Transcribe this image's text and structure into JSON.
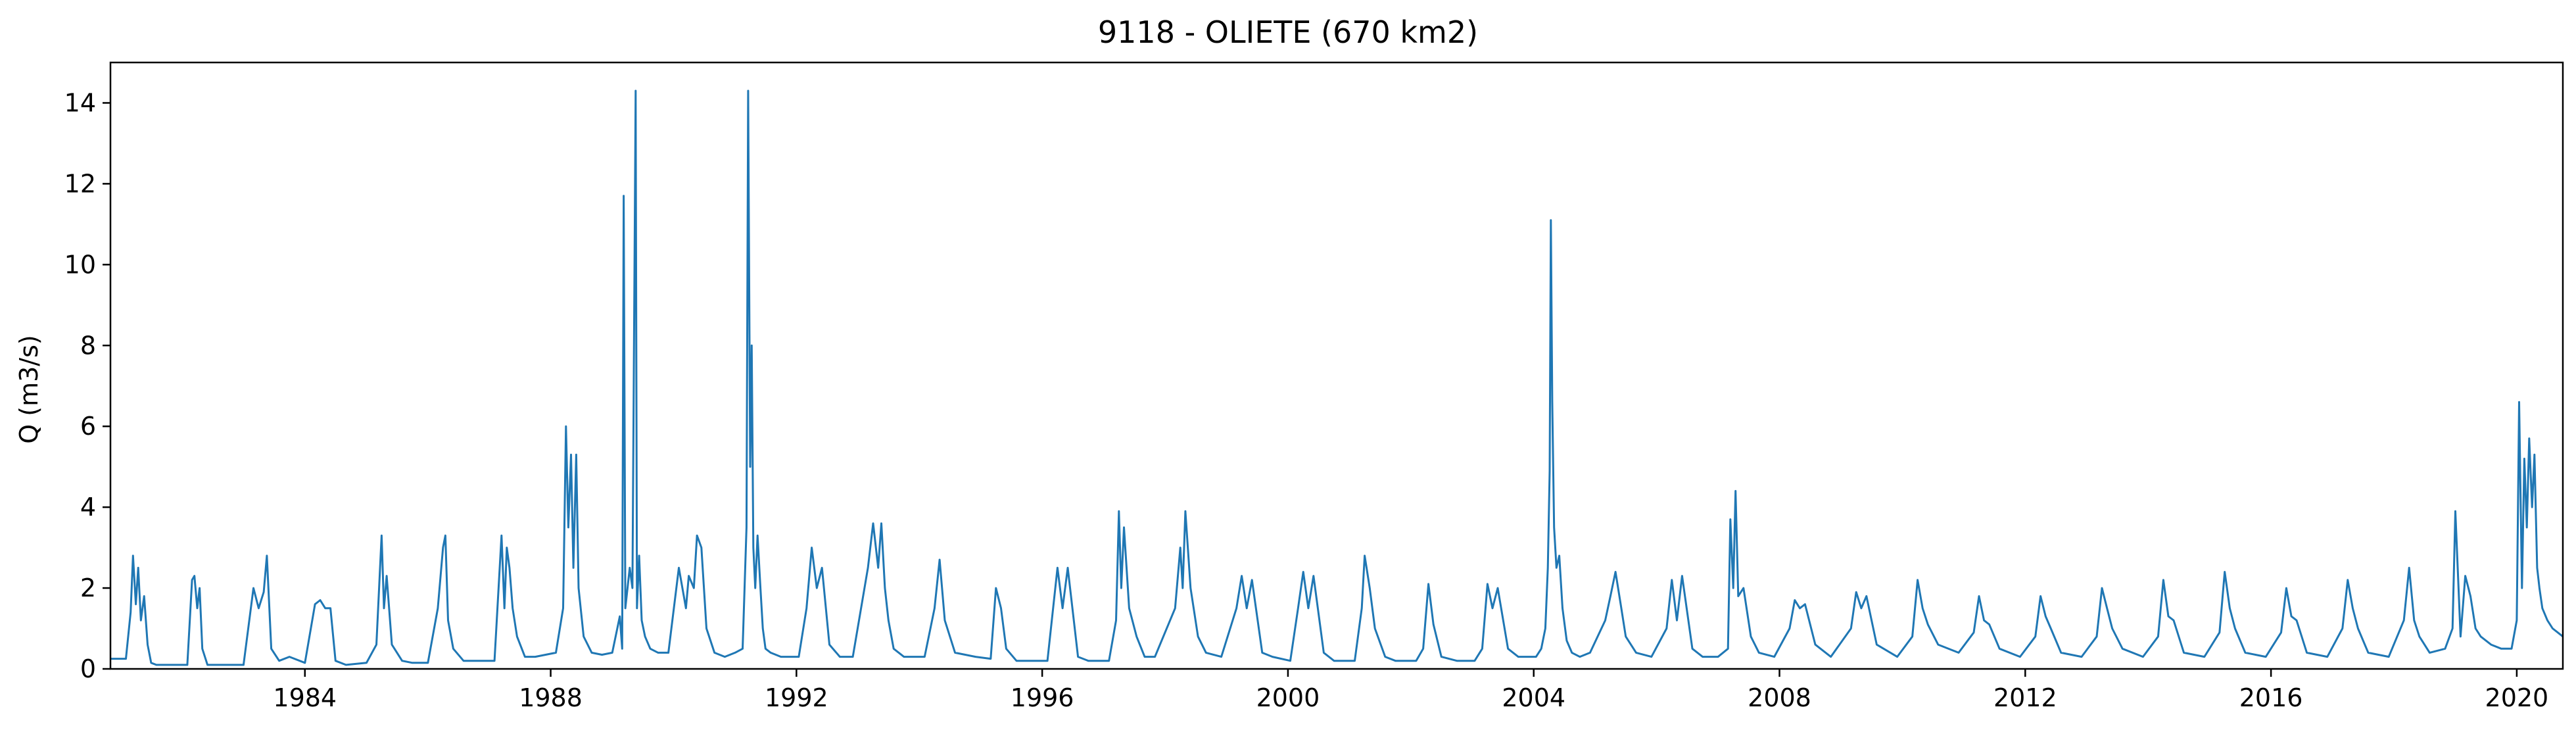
{
  "chart_data": {
    "type": "line",
    "title": "9118 - OLIETE (670 km2)",
    "xlabel": "",
    "ylabel": "Q (m3/s)",
    "xlim": [
      "1980-11-01",
      "2020-10-01"
    ],
    "ylim": [
      0,
      15
    ],
    "xticks": [
      "1984",
      "1988",
      "1992",
      "1996",
      "2000",
      "2004",
      "2008",
      "2012",
      "2016",
      "2020"
    ],
    "yticks": [
      0,
      2,
      4,
      6,
      8,
      10,
      12,
      14
    ],
    "ytick_labels": [
      "0",
      "2",
      "4",
      "6",
      "8",
      "10",
      "12",
      "14"
    ],
    "grid": false,
    "legend": "none",
    "line_color": "#1f77b4",
    "series": [
      {
        "x": [
          "1980-11-01",
          "1981-02-01",
          "1981-03-01",
          "1981-03-15",
          "1981-04-01",
          "1981-04-15",
          "1981-05-01",
          "1981-05-20",
          "1981-06-10",
          "1981-07-01",
          "1981-08-01",
          "1981-10-01",
          "1982-02-01",
          "1982-03-01",
          "1982-03-15",
          "1982-04-01",
          "1982-04-15",
          "1982-05-01",
          "1982-06-01",
          "1982-08-01",
          "1983-01-01",
          "1983-03-01",
          "1983-04-01",
          "1983-05-01",
          "1983-05-20",
          "1983-06-15",
          "1983-08-01",
          "1983-10-01",
          "1984-01-01",
          "1984-03-01",
          "1984-04-01",
          "1984-05-01",
          "1984-06-01",
          "1984-07-01",
          "1984-09-01",
          "1985-01-01",
          "1985-03-01",
          "1985-04-01",
          "1985-04-15",
          "1985-05-01",
          "1985-06-01",
          "1985-08-01",
          "1985-10-01",
          "1986-01-01",
          "1986-03-01",
          "1986-04-01",
          "1986-04-15",
          "1986-05-01",
          "1986-06-01",
          "1986-08-01",
          "1987-01-01",
          "1987-02-01",
          "1987-03-15",
          "1987-04-01",
          "1987-04-15",
          "1987-05-01",
          "1987-05-20",
          "1987-06-15",
          "1987-08-01",
          "1987-10-01",
          "1988-02-01",
          "1988-03-15",
          "1988-04-01",
          "1988-04-15",
          "1988-05-01",
          "1988-05-15",
          "1988-06-01",
          "1988-06-15",
          "1988-07-15",
          "1988-09-01",
          "1988-11-01",
          "1989-01-01",
          "1989-02-15",
          "1989-03-01",
          "1989-03-10",
          "1989-03-20",
          "1989-04-15",
          "1989-05-01",
          "1989-05-20",
          "1989-05-28",
          "1989-06-10",
          "1989-06-25",
          "1989-07-15",
          "1989-08-15",
          "1989-10-01",
          "1989-12-01",
          "1990-02-01",
          "1990-03-15",
          "1990-04-01",
          "1990-05-01",
          "1990-05-20",
          "1990-06-15",
          "1990-07-15",
          "1990-09-01",
          "1990-11-01",
          "1991-01-01",
          "1991-02-15",
          "1991-03-10",
          "1991-03-20",
          "1991-04-01",
          "1991-04-10",
          "1991-04-20",
          "1991-05-01",
          "1991-05-15",
          "1991-06-01",
          "1991-06-15",
          "1991-07-01",
          "1991-08-01",
          "1991-10-01",
          "1991-12-01",
          "1992-01-15",
          "1992-03-01",
          "1992-04-01",
          "1992-05-01",
          "1992-06-01",
          "1992-07-15",
          "1992-09-15",
          "1992-12-01",
          "1993-03-01",
          "1993-04-01",
          "1993-05-01",
          "1993-05-20",
          "1993-06-10",
          "1993-07-01",
          "1993-08-01",
          "1993-10-01",
          "1994-02-01",
          "1994-04-01",
          "1994-05-01",
          "1994-06-01",
          "1994-08-01",
          "1994-12-01",
          "1995-03-01",
          "1995-04-01",
          "1995-05-01",
          "1995-06-01",
          "1995-08-01",
          "1995-10-01",
          "1996-02-01",
          "1996-04-01",
          "1996-05-01",
          "1996-06-01",
          "1996-08-01",
          "1996-10-01",
          "1997-02-01",
          "1997-03-15",
          "1997-04-01",
          "1997-04-15",
          "1997-05-01",
          "1997-06-01",
          "1997-07-15",
          "1997-09-01",
          "1997-11-01",
          "1998-03-01",
          "1998-04-01",
          "1998-04-15",
          "1998-05-01",
          "1998-06-01",
          "1998-07-15",
          "1998-09-01",
          "1998-12-01",
          "1999-03-01",
          "1999-04-01",
          "1999-05-01",
          "1999-06-01",
          "1999-08-01",
          "1999-10-01",
          "2000-01-15",
          "2000-03-01",
          "2000-04-01",
          "2000-05-01",
          "2000-06-01",
          "2000-08-01",
          "2000-10-01",
          "2001-02-01",
          "2001-03-15",
          "2001-04-01",
          "2001-05-01",
          "2001-06-01",
          "2001-08-01",
          "2001-10-01",
          "2002-02-01",
          "2002-03-15",
          "2002-04-15",
          "2002-05-15",
          "2002-07-01",
          "2002-10-01",
          "2003-01-15",
          "2003-03-01",
          "2003-04-01",
          "2003-05-01",
          "2003-06-01",
          "2003-08-01",
          "2003-10-01",
          "2003-12-01",
          "2004-01-15",
          "2004-02-15",
          "2004-03-10",
          "2004-03-25",
          "2004-04-05",
          "2004-04-12",
          "2004-04-20",
          "2004-05-01",
          "2004-05-15",
          "2004-06-01",
          "2004-06-20",
          "2004-07-15",
          "2004-08-15",
          "2004-10-01",
          "2004-12-01",
          "2005-03-01",
          "2005-04-01",
          "2005-05-01",
          "2005-06-01",
          "2005-07-01",
          "2005-09-01",
          "2005-12-01",
          "2006-03-01",
          "2006-04-01",
          "2006-05-01",
          "2006-06-01",
          "2006-08-01",
          "2006-10-01",
          "2007-01-01",
          "2007-03-01",
          "2007-03-15",
          "2007-04-01",
          "2007-04-15",
          "2007-05-01",
          "2007-06-01",
          "2007-07-15",
          "2007-09-01",
          "2007-12-01",
          "2008-03-01",
          "2008-04-01",
          "2008-05-01",
          "2008-06-01",
          "2008-08-01",
          "2008-11-01",
          "2009-03-01",
          "2009-04-01",
          "2009-05-01",
          "2009-06-01",
          "2009-08-01",
          "2009-12-01",
          "2010-03-01",
          "2010-04-01",
          "2010-05-01",
          "2010-06-01",
          "2010-08-01",
          "2010-12-01",
          "2011-03-01",
          "2011-04-01",
          "2011-05-01",
          "2011-06-01",
          "2011-08-01",
          "2011-12-01",
          "2012-03-01",
          "2012-04-01",
          "2012-05-01",
          "2012-06-01",
          "2012-08-01",
          "2012-12-01",
          "2013-03-01",
          "2013-04-01",
          "2013-05-01",
          "2013-06-01",
          "2013-08-01",
          "2013-12-01",
          "2014-03-01",
          "2014-04-01",
          "2014-05-01",
          "2014-06-01",
          "2014-08-01",
          "2014-12-01",
          "2015-03-01",
          "2015-04-01",
          "2015-05-01",
          "2015-06-01",
          "2015-08-01",
          "2015-12-01",
          "2016-03-01",
          "2016-04-01",
          "2016-05-01",
          "2016-06-01",
          "2016-08-01",
          "2016-12-01",
          "2017-03-01",
          "2017-04-01",
          "2017-05-01",
          "2017-06-01",
          "2017-08-01",
          "2017-12-01",
          "2018-03-01",
          "2018-04-01",
          "2018-05-01",
          "2018-06-01",
          "2018-08-01",
          "2018-11-01",
          "2018-12-15",
          "2019-01-01",
          "2019-02-01",
          "2019-03-01",
          "2019-04-01",
          "2019-05-01",
          "2019-06-01",
          "2019-08-01",
          "2019-10-01",
          "2019-12-01",
          "2020-01-01",
          "2020-01-15",
          "2020-02-01",
          "2020-02-15",
          "2020-03-01",
          "2020-03-15",
          "2020-04-01",
          "2020-04-15",
          "2020-05-01",
          "2020-05-15",
          "2020-06-01",
          "2020-07-01",
          "2020-08-01",
          "2020-09-01",
          "2020-10-01"
        ],
        "y": [
          0.25,
          0.25,
          1.4,
          2.8,
          1.6,
          2.5,
          1.2,
          1.8,
          0.6,
          0.15,
          0.1,
          0.1,
          0.1,
          2.2,
          2.3,
          1.5,
          2.0,
          0.5,
          0.1,
          0.1,
          0.1,
          2.0,
          1.5,
          1.9,
          2.8,
          0.5,
          0.2,
          0.3,
          0.15,
          1.6,
          1.7,
          1.5,
          1.5,
          0.2,
          0.1,
          0.15,
          0.6,
          3.3,
          1.5,
          2.3,
          0.6,
          0.2,
          0.15,
          0.15,
          1.5,
          3.0,
          3.3,
          1.2,
          0.5,
          0.2,
          0.2,
          0.2,
          3.3,
          1.5,
          3.0,
          2.5,
          1.5,
          0.8,
          0.3,
          0.3,
          0.4,
          1.5,
          6.0,
          3.5,
          5.3,
          2.5,
          5.3,
          2.0,
          0.8,
          0.4,
          0.35,
          0.4,
          1.3,
          0.5,
          11.7,
          1.5,
          2.5,
          2.0,
          14.3,
          1.5,
          2.8,
          1.2,
          0.8,
          0.5,
          0.4,
          0.4,
          2.5,
          1.5,
          2.3,
          2.0,
          3.3,
          3.0,
          1.0,
          0.4,
          0.3,
          0.4,
          0.5,
          3.5,
          14.3,
          5.0,
          8.0,
          3.0,
          2.0,
          3.3,
          2.0,
          1.0,
          0.5,
          0.4,
          0.3,
          0.3,
          0.3,
          1.5,
          3.0,
          2.0,
          2.5,
          0.6,
          0.3,
          0.3,
          2.5,
          3.6,
          2.5,
          3.6,
          2.0,
          1.2,
          0.5,
          0.3,
          0.3,
          1.5,
          2.7,
          1.2,
          0.4,
          0.3,
          0.25,
          2.0,
          1.5,
          0.5,
          0.2,
          0.2,
          0.2,
          2.5,
          1.5,
          2.5,
          0.3,
          0.2,
          0.2,
          1.2,
          3.9,
          2.0,
          3.5,
          1.5,
          0.8,
          0.3,
          0.3,
          1.5,
          3.0,
          2.0,
          3.9,
          2.0,
          0.8,
          0.4,
          0.3,
          1.5,
          2.3,
          1.5,
          2.2,
          0.4,
          0.3,
          0.2,
          1.5,
          2.4,
          1.5,
          2.3,
          0.4,
          0.2,
          0.2,
          1.5,
          2.8,
          2.0,
          1.0,
          0.3,
          0.2,
          0.2,
          0.5,
          2.1,
          1.1,
          0.3,
          0.2,
          0.2,
          0.5,
          2.1,
          1.5,
          2.0,
          0.5,
          0.3,
          0.3,
          0.3,
          0.5,
          1.0,
          2.5,
          4.9,
          11.1,
          6.6,
          3.5,
          2.5,
          2.8,
          1.5,
          0.7,
          0.4,
          0.3,
          0.4,
          1.2,
          1.8,
          2.4,
          1.6,
          0.8,
          0.4,
          0.3,
          1.0,
          2.2,
          1.2,
          2.3,
          0.5,
          0.3,
          0.3,
          0.5,
          3.7,
          2.0,
          4.4,
          1.8,
          2.0,
          0.8,
          0.4,
          0.3,
          1.0,
          1.7,
          1.5,
          1.6,
          0.6,
          0.3,
          1.0,
          1.9,
          1.5,
          1.8,
          0.6,
          0.3,
          0.8,
          2.2,
          1.5,
          1.1,
          0.6,
          0.4,
          0.9,
          1.8,
          1.2,
          1.1,
          0.5,
          0.3,
          0.8,
          1.8,
          1.3,
          1.0,
          0.4,
          0.3,
          0.8,
          2.0,
          1.5,
          1.0,
          0.5,
          0.3,
          0.8,
          2.2,
          1.3,
          1.2,
          0.4,
          0.3,
          0.9,
          2.4,
          1.5,
          1.0,
          0.4,
          0.3,
          0.9,
          2.0,
          1.3,
          1.2,
          0.4,
          0.3,
          1.0,
          2.2,
          1.5,
          1.0,
          0.4,
          0.3,
          1.2,
          2.5,
          1.2,
          0.8,
          0.4,
          0.5,
          1.0,
          3.9,
          0.8,
          2.3,
          1.8,
          1.0,
          0.8,
          0.6,
          0.5,
          0.5,
          1.2,
          6.6,
          2.0,
          5.2,
          3.5,
          5.7,
          4.0,
          5.3,
          2.5,
          2.0,
          1.5,
          1.2,
          1.0,
          0.9,
          0.8
        ]
      }
    ]
  }
}
